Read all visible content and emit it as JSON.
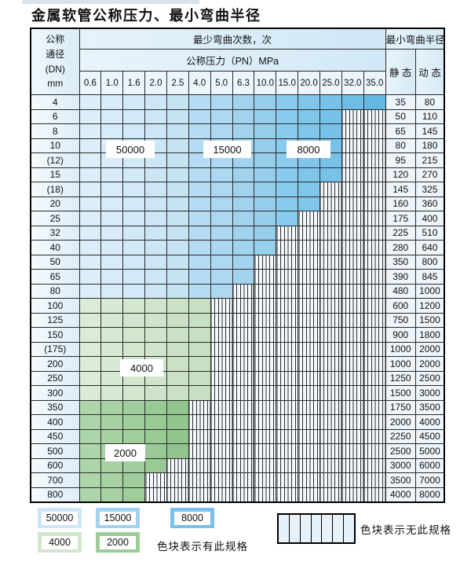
{
  "title": "金属软管公称压力、最小弯曲半径",
  "table": {
    "corner": {
      "line1": "公称",
      "line2": "通径",
      "line3": "(DN)",
      "line4": "mm"
    },
    "cycles_header": "最少弯曲次数，次",
    "pressure_header": "公称压力（PN）MPa",
    "radius_header": "最小弯曲半径",
    "static_header": "静 态",
    "dynamic_header": "动 态"
  },
  "zone_labels": [
    {
      "text": "50000"
    },
    {
      "text": "15000"
    },
    {
      "text": "8000"
    },
    {
      "text": "4000"
    },
    {
      "text": "2000"
    }
  ],
  "legend": {
    "items": [
      {
        "label": "50000",
        "color": "#cde6f6"
      },
      {
        "label": "15000",
        "color": "#a2d3ee"
      },
      {
        "label": "8000",
        "color": "#76c2e9"
      },
      {
        "label": "4000",
        "color": "#d3e6ce"
      },
      {
        "label": "2000",
        "color": "#9ccd98"
      }
    ],
    "has_spec_text": "色块表示有此规格",
    "no_spec_text": "色块表示无此规格"
  },
  "colors": {
    "blue_light": [
      "#dceef9",
      "#d7ebf8",
      "#d2e9f7",
      "#cce6f5",
      "#c6e3f4"
    ],
    "blue_medium": [
      "#b6dcf3",
      "#acd8f1",
      "#a2d3ee",
      "#97ceec"
    ],
    "blue_dark": [
      "#88cbee",
      "#7fc6eb",
      "#76c2e9",
      "#6dbde6",
      "#64b9e4"
    ],
    "green_light": [
      "#dbebd6",
      "#d7e9d2",
      "#d3e6ce",
      "#cfe4ca",
      "#cbe1c6",
      "#c7dfc2"
    ],
    "green_dark": [
      "#aed5aa",
      "#a7d1a3",
      "#a0cd9c",
      "#99c995",
      "#92c58e"
    ],
    "nospec_bg": "#f2f8fd",
    "nospec_line": "#2e2e2e"
  },
  "chart_data": {
    "type": "table",
    "title": "金属软管公称压力、最小弯曲半径",
    "pn_columns_mpa": [
      "0.6",
      "1.0",
      "1.6",
      "2.0",
      "2.5",
      "4.0",
      "5.0",
      "6.3",
      "10.0",
      "15.0",
      "20.0",
      "25.0",
      "32.0",
      "35.0"
    ],
    "cycle_zones": [
      {
        "cycles": 50000,
        "dn_rows": "4–80",
        "pn_col_range": [
          0,
          4
        ],
        "color_base": "#d2e9f7"
      },
      {
        "cycles": 15000,
        "dn_rows": "4–80",
        "pn_col_range": [
          5,
          8
        ],
        "color_base": "#a2d3ee"
      },
      {
        "cycles": 8000,
        "dn_rows": "4–80",
        "pn_col_range": [
          9,
          13
        ],
        "color_base": "#76c2e9"
      },
      {
        "cycles": 4000,
        "dn_rows": "100–300",
        "pn_col_range": [
          0,
          5
        ],
        "color_base": "#d3e6ce"
      },
      {
        "cycles": 2000,
        "dn_rows": "350–800",
        "pn_col_range": [
          0,
          4
        ],
        "color_base": "#a0cd9c"
      }
    ],
    "rows": [
      {
        "dn": "4",
        "band": "blue",
        "colored_through_col": 13,
        "static": "35",
        "dynamic": "80"
      },
      {
        "dn": "6",
        "band": "blue",
        "colored_through_col": 11,
        "static": "50",
        "dynamic": "110"
      },
      {
        "dn": "8",
        "band": "blue",
        "colored_through_col": 11,
        "static": "65",
        "dynamic": "145"
      },
      {
        "dn": "10",
        "band": "blue",
        "colored_through_col": 11,
        "static": "80",
        "dynamic": "180"
      },
      {
        "dn": "(12)",
        "band": "blue",
        "colored_through_col": 11,
        "static": "95",
        "dynamic": "215"
      },
      {
        "dn": "15",
        "band": "blue",
        "colored_through_col": 11,
        "static": "120",
        "dynamic": "270"
      },
      {
        "dn": "(18)",
        "band": "blue",
        "colored_through_col": 10,
        "static": "145",
        "dynamic": "325"
      },
      {
        "dn": "20",
        "band": "blue",
        "colored_through_col": 10,
        "static": "160",
        "dynamic": "360"
      },
      {
        "dn": "25",
        "band": "blue",
        "colored_through_col": 9,
        "static": "175",
        "dynamic": "400"
      },
      {
        "dn": "32",
        "band": "blue",
        "colored_through_col": 8,
        "static": "225",
        "dynamic": "510"
      },
      {
        "dn": "40",
        "band": "blue",
        "colored_through_col": 8,
        "static": "280",
        "dynamic": "640"
      },
      {
        "dn": "50",
        "band": "blue",
        "colored_through_col": 7,
        "static": "350",
        "dynamic": "800"
      },
      {
        "dn": "65",
        "band": "blue",
        "colored_through_col": 7,
        "static": "390",
        "dynamic": "845"
      },
      {
        "dn": "80",
        "band": "blue",
        "colored_through_col": 6,
        "static": "480",
        "dynamic": "1000"
      },
      {
        "dn": "100",
        "band": "green4000",
        "colored_through_col": 5,
        "static": "600",
        "dynamic": "1200"
      },
      {
        "dn": "125",
        "band": "green4000",
        "colored_through_col": 5,
        "static": "750",
        "dynamic": "1500"
      },
      {
        "dn": "150",
        "band": "green4000",
        "colored_through_col": 5,
        "static": "900",
        "dynamic": "1800"
      },
      {
        "dn": "(175)",
        "band": "green4000",
        "colored_through_col": 5,
        "static": "1000",
        "dynamic": "2000"
      },
      {
        "dn": "200",
        "band": "green4000",
        "colored_through_col": 5,
        "static": "1000",
        "dynamic": "2000"
      },
      {
        "dn": "250",
        "band": "green4000",
        "colored_through_col": 5,
        "static": "1250",
        "dynamic": "2500"
      },
      {
        "dn": "300",
        "band": "green4000",
        "colored_through_col": 5,
        "static": "1500",
        "dynamic": "3000"
      },
      {
        "dn": "350",
        "band": "green2000",
        "colored_through_col": 4,
        "static": "1750",
        "dynamic": "3500"
      },
      {
        "dn": "400",
        "band": "green2000",
        "colored_through_col": 4,
        "static": "2000",
        "dynamic": "4000"
      },
      {
        "dn": "450",
        "band": "green2000",
        "colored_through_col": 4,
        "static": "2250",
        "dynamic": "4500"
      },
      {
        "dn": "500",
        "band": "green2000",
        "colored_through_col": 4,
        "static": "2500",
        "dynamic": "5000"
      },
      {
        "dn": "600",
        "band": "green2000",
        "colored_through_col": 3,
        "static": "3000",
        "dynamic": "6000"
      },
      {
        "dn": "700",
        "band": "green2000",
        "colored_through_col": 2,
        "static": "3500",
        "dynamic": "7000"
      },
      {
        "dn": "800",
        "band": "green2000",
        "colored_through_col": 2,
        "static": "4000",
        "dynamic": "8000"
      }
    ]
  }
}
